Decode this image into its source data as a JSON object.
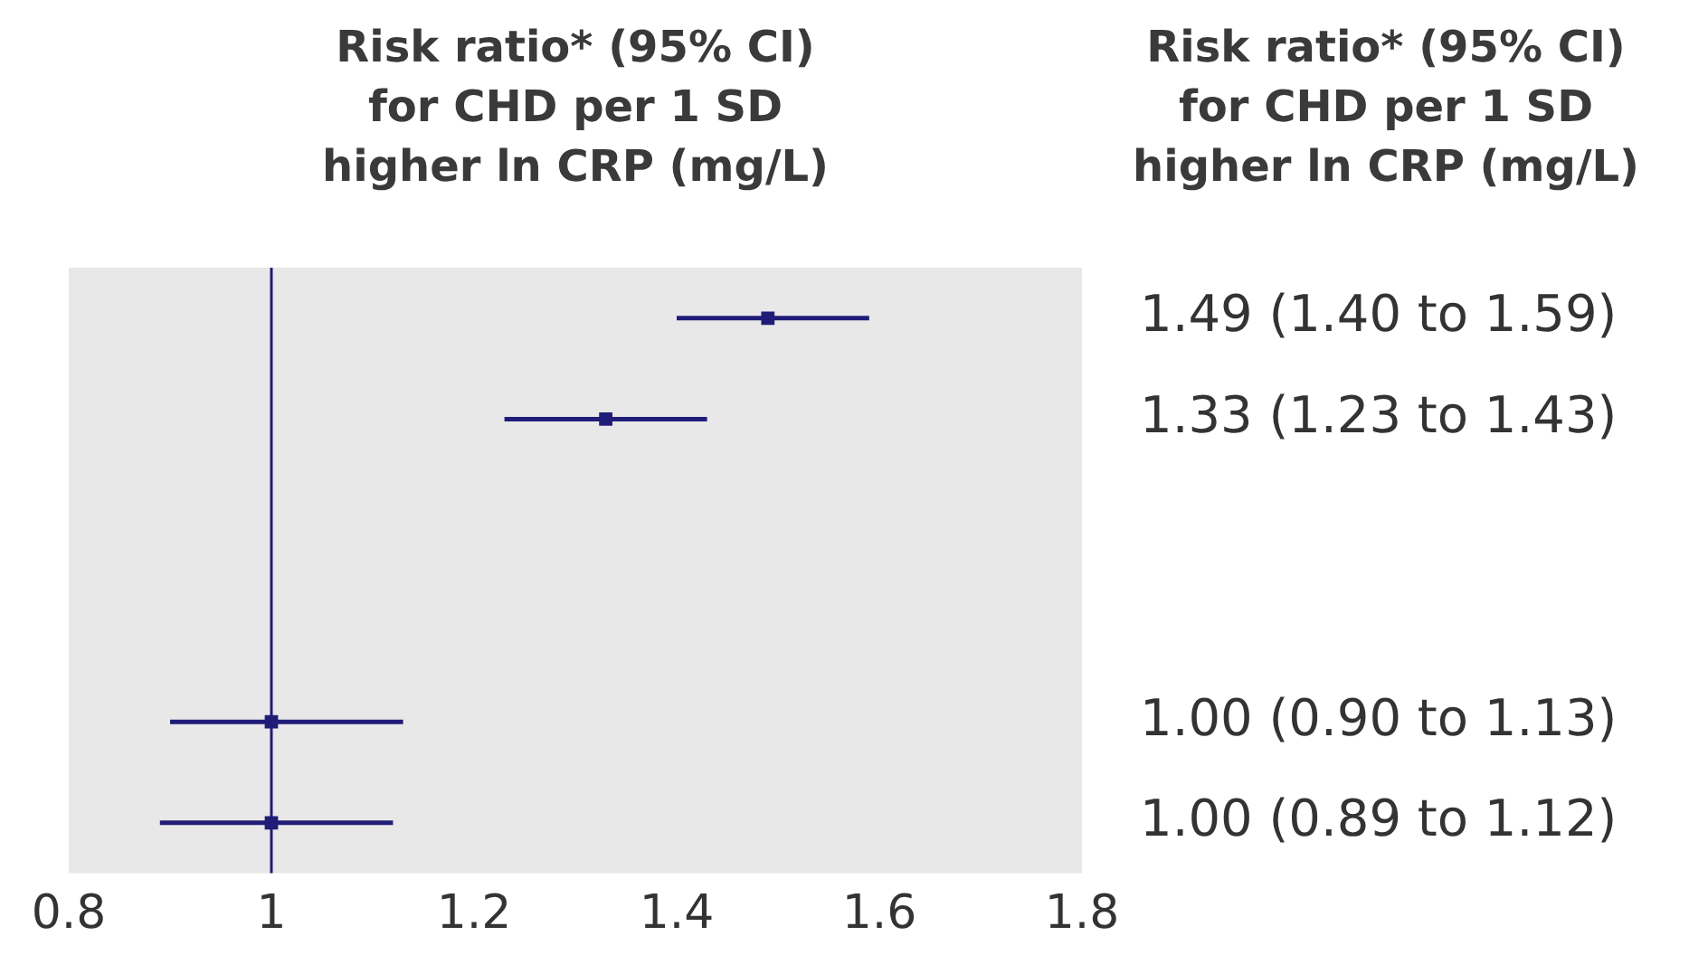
{
  "chart_data": {
    "type": "scatter",
    "orientation": "horizontal",
    "title": "Risk ratio* (95% CI)\nfor CHD per 1 SD\nhigher ln CRP (mg/L)",
    "annotations": [
      "Risk ratio* (95% CI)\nfor CHD per 1 SD\nhigher ln CRP (mg/L)"
    ],
    "categories": [
      null,
      null,
      null,
      null,
      null,
      null
    ],
    "values": [
      1.49,
      1.33,
      null,
      null,
      1.0,
      1.0
    ],
    "errors": [
      [
        1.4,
        1.59
      ],
      [
        1.23,
        1.43
      ],
      null,
      null,
      [
        0.9,
        1.13
      ],
      [
        0.89,
        1.12
      ]
    ],
    "value_labels": [
      "1.49 (1.40 to 1.59)",
      "1.33 (1.23 to 1.43)",
      null,
      null,
      "1.00 (0.90 to 1.13)",
      "1.00 (0.89 to 1.12)"
    ],
    "color": "#201c78",
    "marker": "square",
    "grid": false,
    "xlim": [
      0.8,
      1.8
    ],
    "xticks": [
      0.8,
      1,
      1.2,
      1.4,
      1.6,
      1.8
    ],
    "ref_lines": [
      {
        "axis": "x",
        "value": 1,
        "color": "#201c78"
      }
    ]
  }
}
